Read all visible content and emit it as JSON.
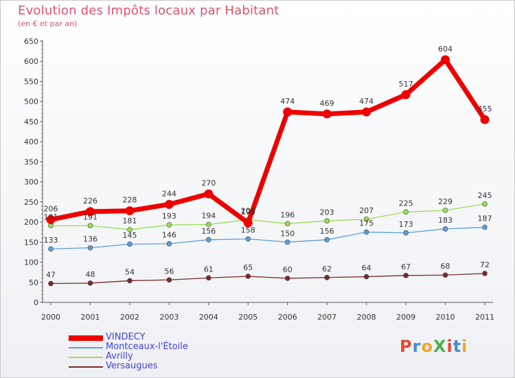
{
  "header": {
    "title": "Evolution des Impôts locaux par Habitant",
    "subtitle": "(en € et par an)"
  },
  "logo": {
    "text": "ProXiti",
    "colors": [
      "#e8472e",
      "#3f8fd8",
      "#f0a52a",
      "#4caf50",
      "#e8472e",
      "#3f8fd8",
      "#f0a52a"
    ]
  },
  "chart_data": {
    "type": "line",
    "title": "Evolution des Impôts locaux par Habitant",
    "subtitle": "(en € et par an)",
    "xlabel": "",
    "ylabel": "",
    "x": [
      "2000",
      "2001",
      "2002",
      "2003",
      "2004",
      "2005",
      "2006",
      "2007",
      "2008",
      "2009",
      "2010",
      "2011"
    ],
    "ylim": [
      0,
      650
    ],
    "yticks": [
      0,
      50,
      100,
      150,
      200,
      250,
      300,
      350,
      400,
      450,
      500,
      550,
      600,
      650
    ],
    "grid": false,
    "legend_position": "bottom-left",
    "series": [
      {
        "name": "VINDECY",
        "color": "#ee0000",
        "values": [
          206,
          226,
          228,
          244,
          270,
          198,
          474,
          469,
          474,
          517,
          604,
          455
        ]
      },
      {
        "name": "Montceaux-l'Étoile",
        "color": "#5b9fd6",
        "values": [
          133,
          136,
          145,
          146,
          156,
          158,
          150,
          156,
          175,
          173,
          183,
          187
        ]
      },
      {
        "name": "Avrilly",
        "color": "#99dd55",
        "values": [
          191,
          191,
          181,
          193,
          194,
          206,
          196,
          203,
          207,
          225,
          229,
          245
        ]
      },
      {
        "name": "Versaugues",
        "color": "#7a2a2a",
        "values": [
          47,
          48,
          54,
          56,
          61,
          65,
          60,
          62,
          64,
          67,
          68,
          72
        ]
      }
    ]
  }
}
